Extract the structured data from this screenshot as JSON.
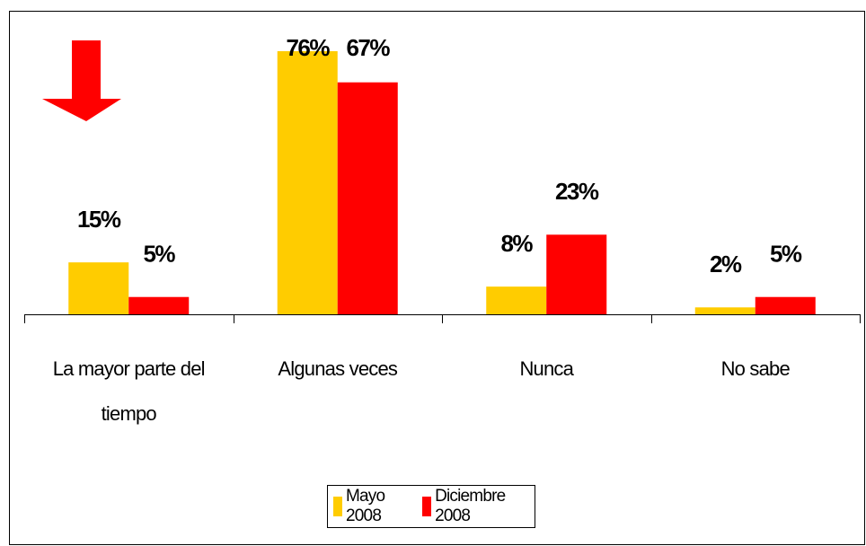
{
  "chart_data": {
    "type": "bar",
    "categories": [
      "La mayor parte del tiempo",
      "Algunas veces",
      "Nunca",
      "No sabe"
    ],
    "series": [
      {
        "name": "Mayo 2008",
        "color": "#FFCC00",
        "values": [
          15,
          76,
          8,
          2
        ],
        "value_labels": [
          "15%",
          "76%",
          "8%",
          "2%"
        ]
      },
      {
        "name": "Diciembre 2008",
        "color": "#FF0000",
        "values": [
          5,
          67,
          23,
          5
        ],
        "value_labels": [
          "5%",
          "67%",
          "23%",
          "5%"
        ]
      }
    ],
    "legend": "bottom"
  }
}
